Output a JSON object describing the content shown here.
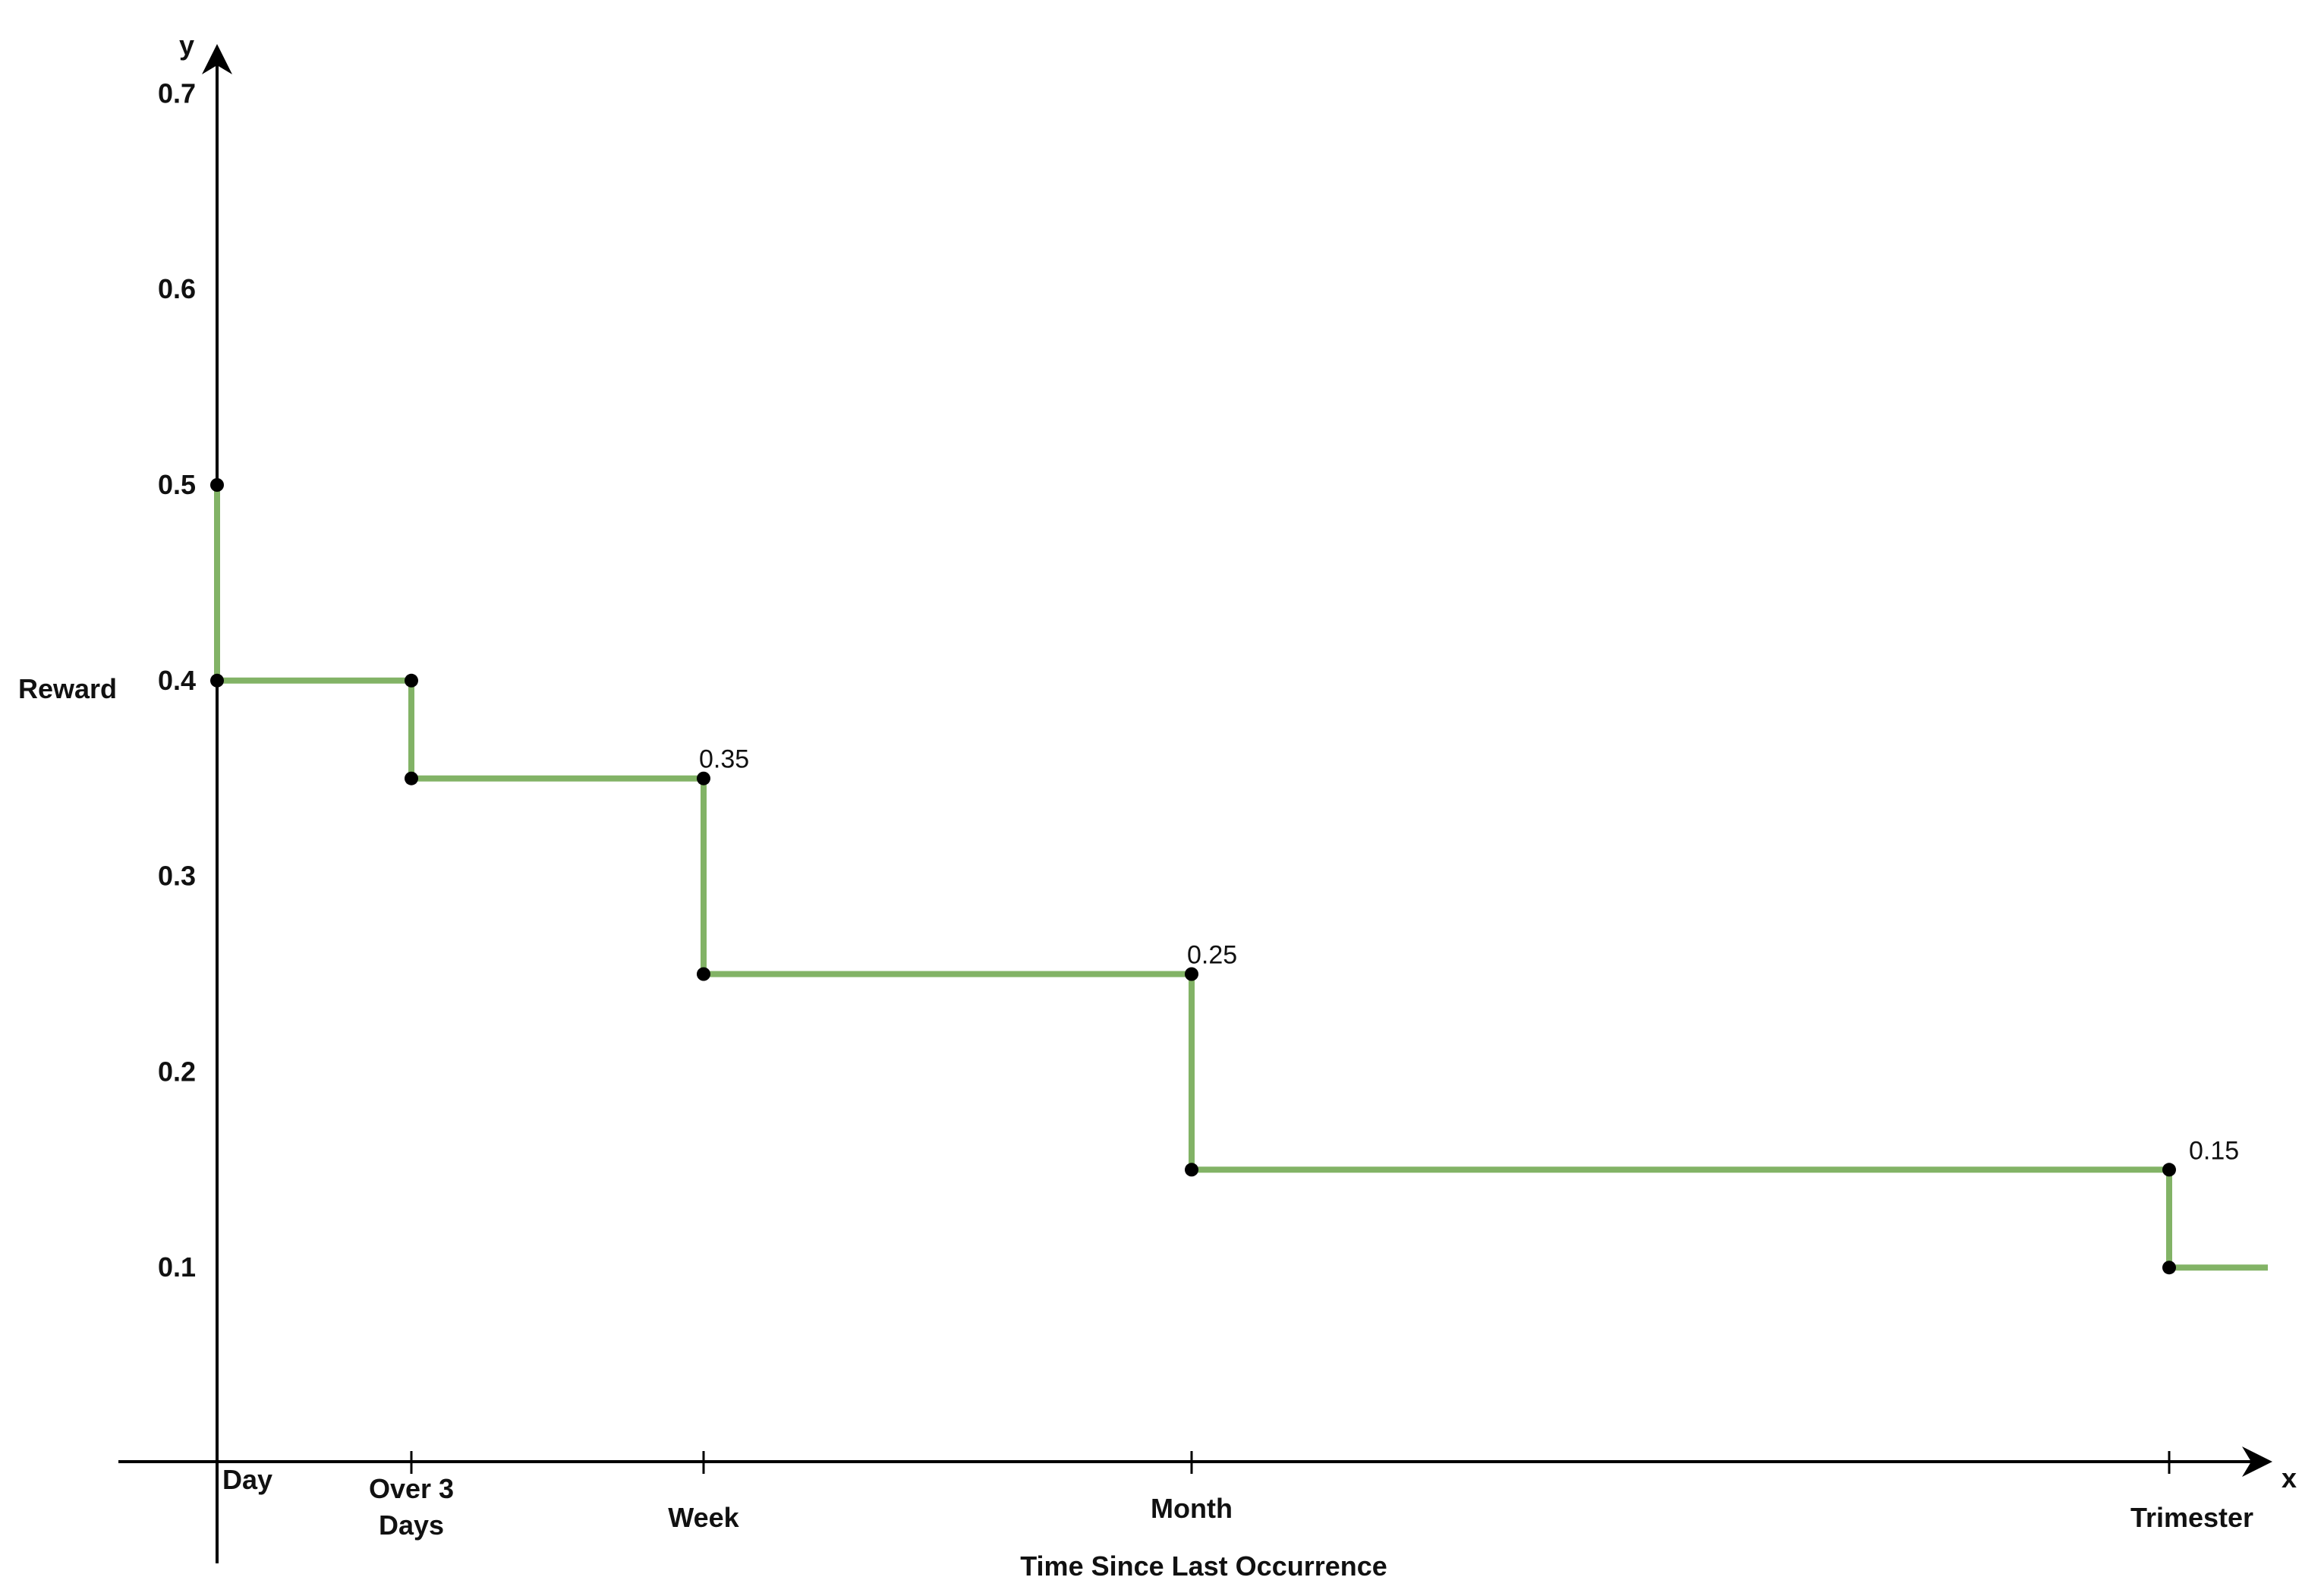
{
  "chart_data": {
    "type": "line",
    "step": true,
    "xlabel": "Time Since Last Occurrence",
    "ylabel": "Reward",
    "x_axis_letter": "x",
    "y_axis_letter": "y",
    "x_categories": [
      "Day",
      "Over 3 Days",
      "Week",
      "Month",
      "Trimester"
    ],
    "y_ticks": [
      "0.1",
      "0.2",
      "0.3",
      "0.4",
      "0.5",
      "0.6",
      "0.7"
    ],
    "ylim": [
      0,
      0.72
    ],
    "grid": false,
    "line_color": "#82b366",
    "point_color": "#000000",
    "points": [
      {
        "x": "Day",
        "y": 0.5
      },
      {
        "x": "Day",
        "y": 0.4
      },
      {
        "x": "Over 3 Days",
        "y": 0.4
      },
      {
        "x": "Over 3 Days",
        "y": 0.35
      },
      {
        "x": "Week",
        "y": 0.35
      },
      {
        "x": "Week",
        "y": 0.25
      },
      {
        "x": "Month",
        "y": 0.25
      },
      {
        "x": "Month",
        "y": 0.15
      },
      {
        "x": "Trimester",
        "y": 0.15
      },
      {
        "x": "Trimester",
        "y": 0.1
      }
    ],
    "annotations": [
      {
        "text": "0.35",
        "x": "Week",
        "y": 0.35
      },
      {
        "text": "0.25",
        "x": "Month",
        "y": 0.25
      },
      {
        "text": "0.15",
        "x": "Trimester",
        "y": 0.15
      }
    ]
  }
}
